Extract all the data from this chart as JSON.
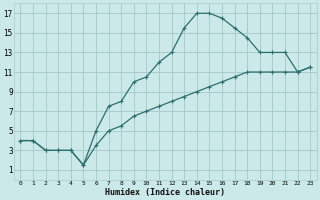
{
  "xlabel": "Humidex (Indice chaleur)",
  "bg_color": "#cce9e9",
  "grid_color": "#aacccc",
  "line_color": "#2d6e6e",
  "xlim": [
    -0.5,
    23.5
  ],
  "ylim": [
    0,
    18
  ],
  "xticks": [
    0,
    1,
    2,
    3,
    4,
    5,
    6,
    7,
    8,
    9,
    10,
    11,
    12,
    13,
    14,
    15,
    16,
    17,
    18,
    19,
    20,
    21,
    22,
    23
  ],
  "yticks": [
    1,
    3,
    5,
    7,
    9,
    11,
    13,
    15,
    17
  ],
  "curve1_x": [
    0,
    1,
    2,
    3,
    4,
    5,
    6,
    7,
    8,
    9,
    10,
    11,
    12,
    13,
    14,
    15,
    16,
    17,
    18,
    19,
    20,
    21,
    22,
    23
  ],
  "curve1_y": [
    4,
    4,
    3,
    3,
    3,
    1.5,
    5,
    7.5,
    8,
    10,
    10.5,
    12,
    13,
    15.5,
    17,
    17,
    16.5,
    15.5,
    14.5,
    13,
    13,
    13,
    11,
    11.5
  ],
  "curve2_x": [
    0,
    1,
    2,
    3,
    4,
    5,
    6,
    7,
    8,
    9,
    10,
    11,
    12,
    13,
    14,
    15,
    16,
    17,
    18,
    19,
    20,
    21,
    22,
    23
  ],
  "curve2_y": [
    4,
    4,
    3,
    3,
    3,
    1.5,
    3.5,
    5,
    5.5,
    6.5,
    7,
    7.5,
    8,
    8.5,
    9,
    9.5,
    10,
    10.5,
    11,
    11,
    11,
    11,
    11,
    11.5
  ]
}
